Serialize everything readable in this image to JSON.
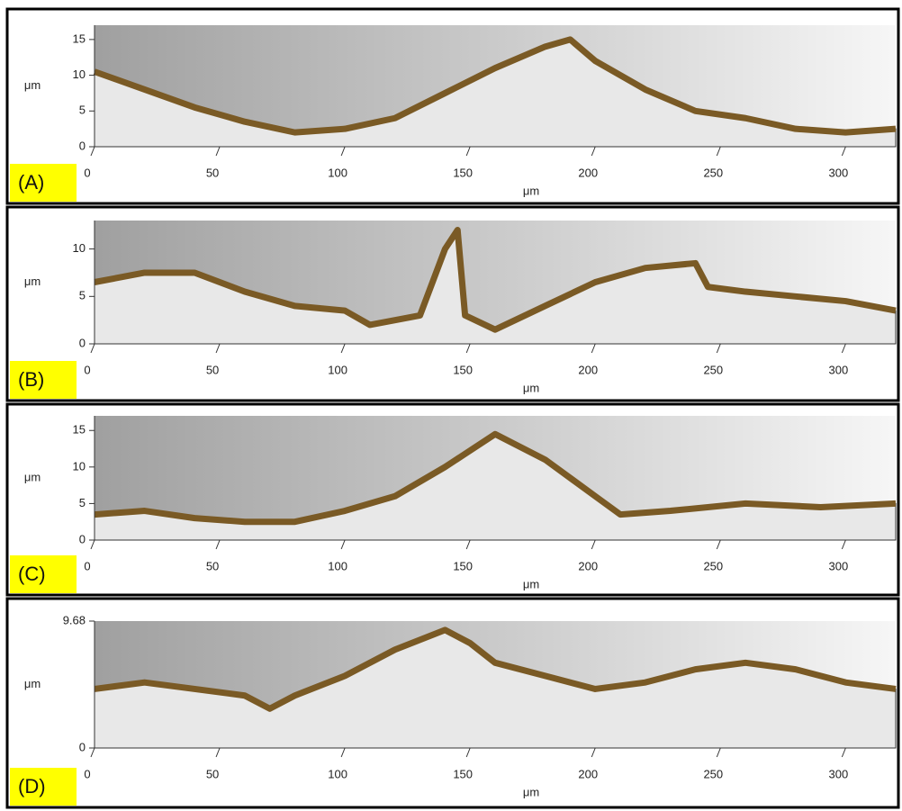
{
  "chart_data": [
    {
      "type": "area",
      "panel_label": "(A)",
      "xlabel": "μm",
      "ylabel": "μm",
      "color": "#7a5a25",
      "x": [
        0,
        20,
        40,
        60,
        80,
        100,
        120,
        140,
        160,
        180,
        190,
        200,
        220,
        240,
        260,
        280,
        300,
        320
      ],
      "values": [
        10.5,
        8,
        5.5,
        3.5,
        2,
        2.5,
        4,
        7.5,
        11,
        14,
        15,
        12,
        8,
        5,
        4,
        2.5,
        2,
        2.5
      ],
      "xlim": [
        0,
        320
      ],
      "ylim": [
        0,
        17
      ],
      "xticks": [
        0,
        50,
        100,
        150,
        200,
        250,
        300
      ],
      "yticks": [
        0,
        5,
        10,
        15
      ]
    },
    {
      "type": "area",
      "panel_label": "(B)",
      "xlabel": "μm",
      "ylabel": "μm",
      "color": "#7a5a25",
      "x": [
        0,
        20,
        40,
        60,
        80,
        100,
        110,
        130,
        140,
        145,
        148,
        160,
        180,
        200,
        220,
        240,
        245,
        260,
        280,
        300,
        320
      ],
      "values": [
        6.5,
        7.5,
        7.5,
        5.5,
        4,
        3.5,
        2,
        3,
        10,
        12,
        3,
        1.5,
        4,
        6.5,
        8,
        8.5,
        6,
        5.5,
        5,
        4.5,
        3.5
      ],
      "xlim": [
        0,
        320
      ],
      "ylim": [
        0,
        13
      ],
      "xticks": [
        0,
        50,
        100,
        150,
        200,
        250,
        300
      ],
      "yticks": [
        0,
        5,
        10
      ]
    },
    {
      "type": "area",
      "panel_label": "(C)",
      "xlabel": "μm",
      "ylabel": "μm",
      "color": "#7a5a25",
      "x": [
        0,
        20,
        40,
        60,
        80,
        100,
        120,
        140,
        160,
        180,
        200,
        210,
        230,
        260,
        290,
        320
      ],
      "values": [
        3.5,
        4,
        3,
        2.5,
        2.5,
        4,
        6,
        10,
        14.5,
        11,
        6,
        3.5,
        4,
        5,
        4.5,
        5
      ],
      "xlim": [
        0,
        320
      ],
      "ylim": [
        0,
        17
      ],
      "xticks": [
        0,
        50,
        100,
        150,
        200,
        250,
        300
      ],
      "yticks": [
        0,
        5,
        10,
        15
      ]
    },
    {
      "type": "area",
      "panel_label": "(D)",
      "xlabel": "μm",
      "ylabel": "μm",
      "color": "#7a5a25",
      "x": [
        0,
        20,
        40,
        60,
        70,
        80,
        100,
        120,
        140,
        150,
        160,
        180,
        200,
        220,
        240,
        260,
        280,
        300,
        320
      ],
      "values": [
        4.5,
        5,
        4.5,
        4,
        3,
        4,
        5.5,
        7.5,
        9,
        8,
        6.5,
        5.5,
        4.5,
        5,
        6,
        6.5,
        6,
        5,
        4.5
      ],
      "xlim": [
        0,
        320
      ],
      "ylim": [
        0,
        9.68
      ],
      "xticks": [
        0,
        50,
        100,
        150,
        200,
        250,
        300
      ],
      "yticks": [
        0,
        9.68
      ]
    }
  ]
}
